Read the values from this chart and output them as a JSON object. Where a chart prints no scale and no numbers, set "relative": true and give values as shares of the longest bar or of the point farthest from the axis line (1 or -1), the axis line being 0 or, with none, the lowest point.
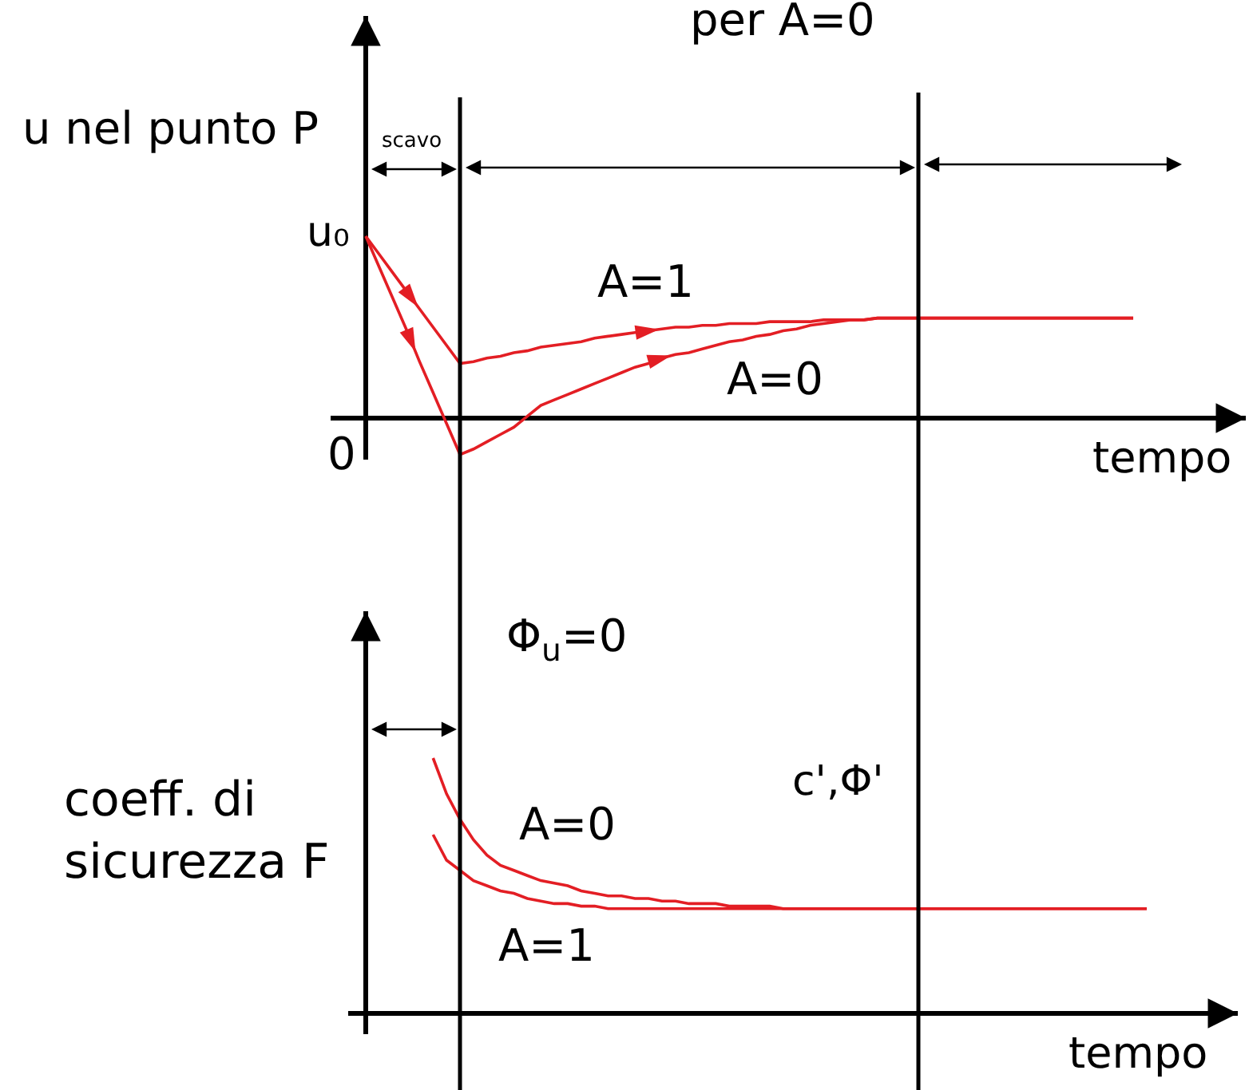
{
  "chart_data": [
    {
      "type": "line",
      "xlabel": "tempo",
      "ylabel": "u nel punto P",
      "relative": true,
      "categories": [
        null,
        null,
        null,
        null,
        null,
        null,
        null,
        null,
        null,
        null,
        null,
        null,
        null,
        null,
        null,
        null,
        null,
        null,
        null,
        null,
        null,
        null,
        null,
        null,
        null,
        null,
        null,
        null,
        null,
        null,
        null,
        null,
        null,
        null,
        null,
        null,
        null,
        null,
        null,
        null,
        null,
        null,
        null,
        null,
        null,
        null,
        null,
        null,
        null,
        null,
        null,
        null,
        null,
        null,
        null,
        null,
        null,
        null,
        null
      ],
      "series": [
        {
          "name": "A=1",
          "color": "#e31e24",
          "values": [
            1.0,
            0.9,
            0.8,
            0.7,
            0.6,
            0.5,
            0.4,
            0.3,
            0.31,
            0.33,
            0.34,
            0.36,
            0.37,
            0.39,
            0.4,
            0.41,
            0.42,
            0.44,
            0.45,
            0.46,
            0.47,
            0.48,
            0.49,
            0.5,
            0.5,
            0.51,
            0.51,
            0.52,
            0.52,
            0.52,
            0.53,
            0.53,
            0.53,
            0.53,
            0.54,
            0.54,
            0.54,
            0.54,
            0.55,
            0.55,
            0.55,
            0.55,
            0.55,
            0.55,
            0.55,
            0.55,
            0.55,
            0.55,
            0.55,
            0.55,
            0.55,
            0.55,
            0.55,
            0.55,
            0.55,
            0.55,
            0.55,
            0.55,
            null
          ]
        },
        {
          "name": "A=0",
          "color": "#e31e24",
          "values": [
            1.0,
            0.83,
            0.66,
            0.49,
            0.31,
            0.14,
            -0.03,
            -0.2,
            -0.17,
            -0.13,
            -0.09,
            -0.05,
            0.01,
            0.07,
            0.1,
            0.13,
            0.16,
            0.19,
            0.22,
            0.25,
            0.28,
            0.3,
            0.33,
            0.35,
            0.36,
            0.38,
            0.4,
            0.42,
            0.43,
            0.45,
            0.46,
            0.48,
            0.49,
            0.51,
            0.52,
            0.53,
            0.54,
            0.54,
            0.55,
            0.55,
            0.55,
            0.55,
            0.55,
            0.55,
            0.55,
            0.55,
            0.55,
            0.55,
            0.55,
            0.55,
            0.55,
            0.55,
            0.55,
            0.55,
            0.55,
            0.55,
            0.55,
            0.55,
            null
          ]
        }
      ],
      "annotations": [
        "per A=0",
        "scavo",
        "u₀",
        "0"
      ]
    },
    {
      "type": "line",
      "xlabel": "tempo",
      "ylabel": "coeff. di sicurezza F",
      "relative": true,
      "categories": [
        null,
        null,
        null,
        null,
        null,
        null,
        null,
        null,
        null,
        null,
        null,
        null,
        null,
        null,
        null,
        null,
        null,
        null,
        null,
        null,
        null,
        null,
        null,
        null,
        null,
        null,
        null,
        null,
        null,
        null,
        null,
        null,
        null,
        null,
        null,
        null,
        null,
        null,
        null,
        null,
        null,
        null,
        null,
        null,
        null,
        null,
        null,
        null,
        null,
        null,
        null,
        null,
        null,
        null,
        null,
        null,
        null,
        null,
        null
      ],
      "series": [
        {
          "name": "A=0",
          "color": "#e31e24",
          "values": [
            null,
            null,
            null,
            null,
            null,
            1.0,
            0.86,
            0.76,
            0.68,
            0.62,
            0.58,
            0.56,
            0.54,
            0.52,
            0.51,
            0.5,
            0.48,
            0.47,
            0.46,
            0.46,
            0.45,
            0.45,
            0.44,
            0.44,
            0.43,
            0.43,
            0.43,
            0.42,
            0.42,
            0.42,
            0.42,
            0.41,
            0.41,
            0.41,
            0.41,
            0.41,
            0.41,
            0.41,
            0.41,
            0.41,
            0.41,
            0.41,
            0.41,
            0.41,
            0.41,
            0.41,
            0.41,
            0.41,
            0.41,
            0.41,
            0.41,
            0.41,
            0.41,
            0.41,
            0.41,
            0.41,
            0.41,
            0.41,
            0.41
          ]
        },
        {
          "name": "A=1",
          "color": "#e31e24",
          "values": [
            null,
            null,
            null,
            null,
            null,
            0.7,
            0.6,
            0.56,
            0.52,
            0.5,
            0.48,
            0.47,
            0.45,
            0.44,
            0.43,
            0.43,
            0.42,
            0.42,
            0.41,
            0.41,
            0.41,
            0.41,
            0.41,
            0.41,
            0.41,
            0.41,
            0.41,
            0.41,
            0.41,
            0.41,
            0.41,
            0.41,
            0.41,
            0.41,
            0.41,
            0.41,
            0.41,
            0.41,
            0.41,
            0.41,
            0.41,
            0.41,
            0.41,
            0.41,
            0.41,
            0.41,
            0.41,
            0.41,
            0.41,
            0.41,
            0.41,
            0.41,
            0.41,
            0.41,
            0.41,
            0.41,
            0.41,
            0.41,
            0.41
          ]
        }
      ],
      "annotations": [
        "Φ$_{u}$=0",
        "c',Φ'"
      ]
    }
  ]
}
